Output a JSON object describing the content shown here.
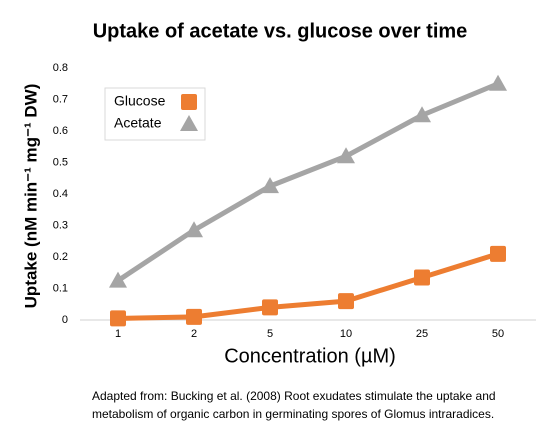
{
  "chart_data": {
    "type": "line",
    "title": "Uptake of acetate vs. glucose over time",
    "y_label": "Uptake (nM min⁻¹ mg⁻¹ DW)",
    "x_label": "Concentration  (µM)",
    "caption": [
      "Adapted from: Bucking et al. (2008) Root exudates stimulate the uptake and",
      "metabolism of organic carbon in germinating spores of Glomus intraradices."
    ],
    "categories": [
      "1",
      "2",
      "5",
      "10",
      "25",
      "50"
    ],
    "series": [
      {
        "name": "Glucose",
        "color": "#ed7d31",
        "marker": "square",
        "values": [
          0.005,
          0.01,
          0.04,
          0.06,
          0.135,
          0.21
        ]
      },
      {
        "name": "Acetate",
        "color": "#a5a5a5",
        "marker": "triangle",
        "values": [
          0.125,
          0.285,
          0.425,
          0.52,
          0.65,
          0.75
        ]
      }
    ],
    "ylim": [
      0,
      0.8
    ],
    "yticks": [
      0,
      0.1,
      0.2,
      0.3,
      0.4,
      0.5,
      0.6,
      0.7,
      0.8
    ],
    "grid": false,
    "legend": "upper left"
  }
}
